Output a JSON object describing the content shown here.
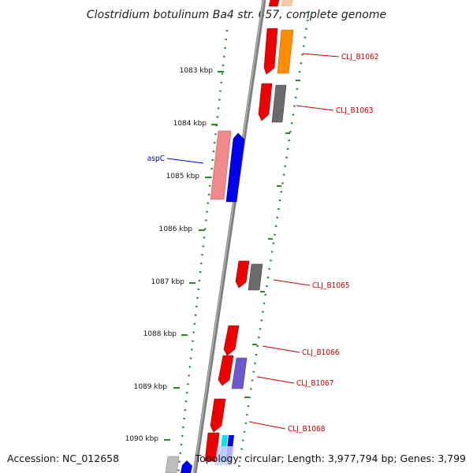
{
  "title": "Clostridium botulinum Ba4 str. 657, complete genome",
  "footer": {
    "accession": "Accession: NC_012658",
    "summary": "Topology: circular; Length: 3,977,794 bp; Genes: 3,799"
  },
  "colors": {
    "backbone": "#8a8a8a",
    "tick": "#2a8a2a",
    "label_red": "#cc0000",
    "label_blue": "#0000cc"
  },
  "ticks": [
    {
      "label": "1083 kbp",
      "value": 1083
    },
    {
      "label": "1084 kbp",
      "value": 1084
    },
    {
      "label": "1085 kbp",
      "value": 1085
    },
    {
      "label": "1086 kbp",
      "value": 1086
    },
    {
      "label": "1087 kbp",
      "value": 1087
    },
    {
      "label": "1088 kbp",
      "value": 1088
    },
    {
      "label": "1089 kbp",
      "value": 1089
    },
    {
      "label": "1090 kbp",
      "value": 1090
    }
  ],
  "gene_labels": [
    {
      "text": "CLJ_B1062",
      "color": "#cc0000"
    },
    {
      "text": "CLJ_B1063",
      "color": "#cc0000"
    },
    {
      "text": "aspC",
      "color": "#0000cc"
    },
    {
      "text": "CLJ_B1065",
      "color": "#cc0000"
    },
    {
      "text": "CLJ_B1066",
      "color": "#cc0000"
    },
    {
      "text": "CLJ_B1067",
      "color": "#cc0000"
    },
    {
      "text": "CLJ_B1068",
      "color": "#cc0000"
    }
  ]
}
